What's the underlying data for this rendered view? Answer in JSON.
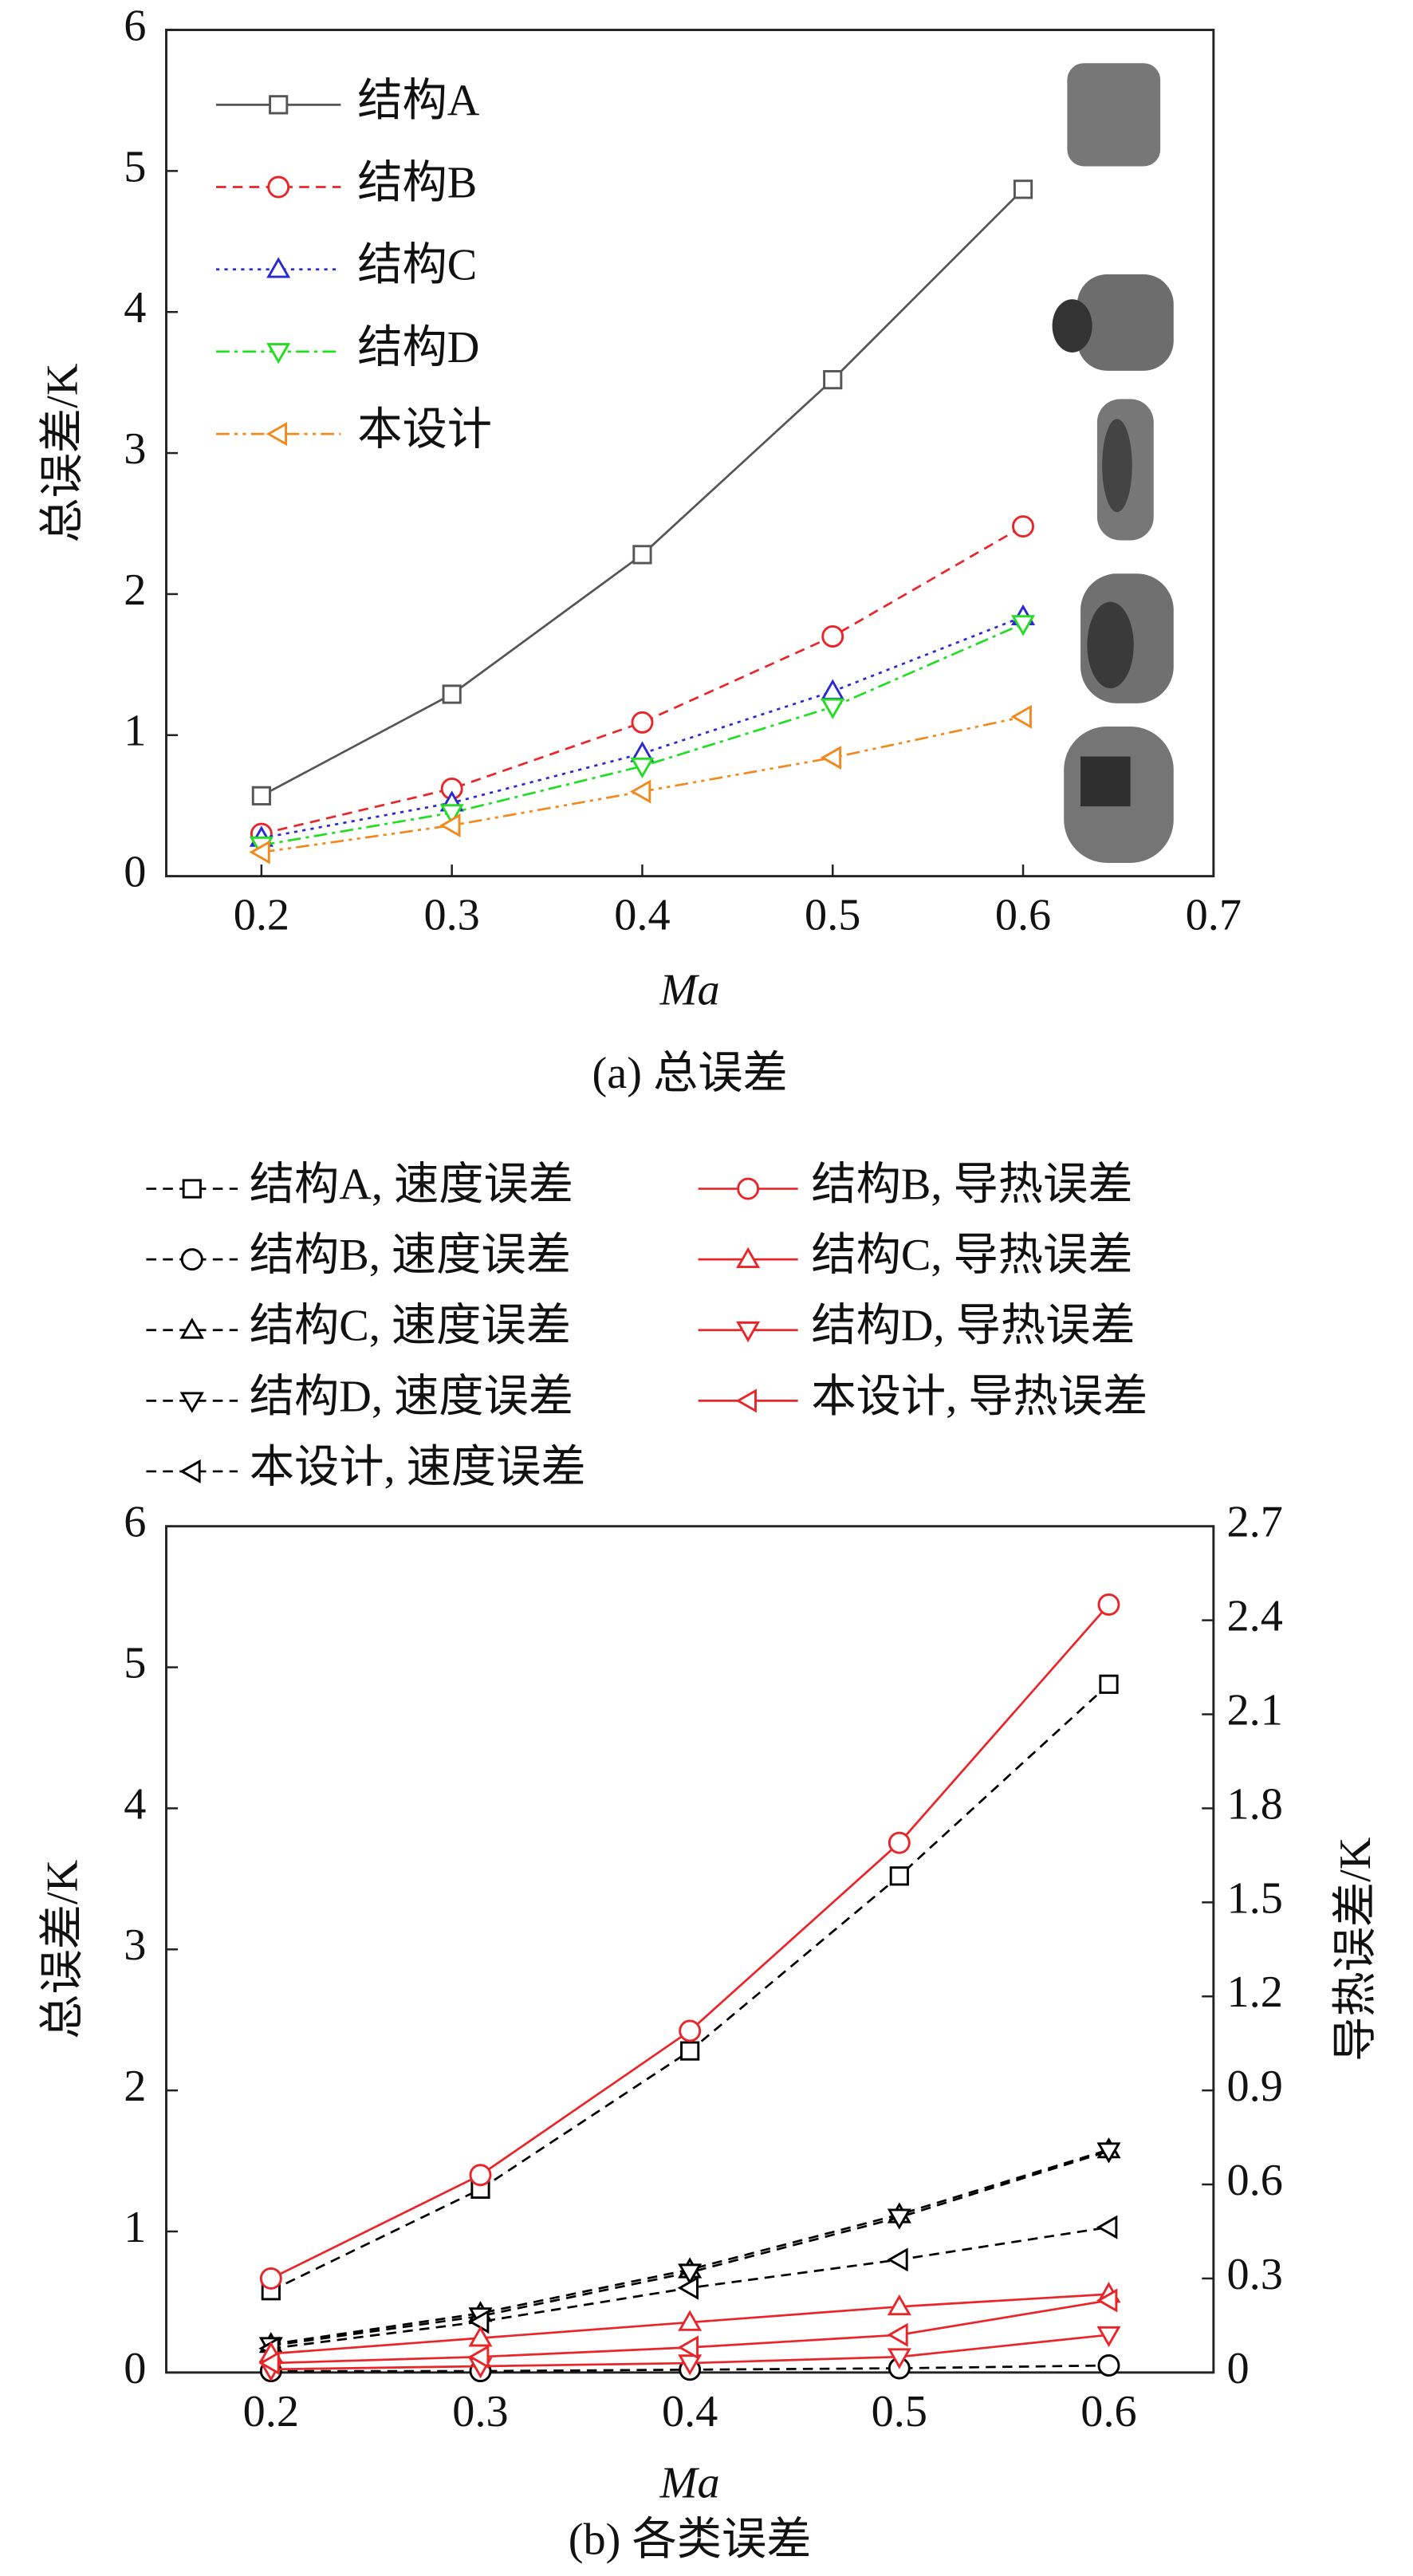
{
  "chart_data": [
    {
      "type": "line",
      "caption": "(a) 总误差",
      "xlabel": "Ma",
      "ylabel": "总误差/K",
      "x": [
        0.2,
        0.3,
        0.4,
        0.5,
        0.6
      ],
      "xlim": [
        0.15,
        0.7
      ],
      "xticks": [
        0.2,
        0.3,
        0.4,
        0.5,
        0.6,
        0.7
      ],
      "ylim": [
        0,
        6
      ],
      "yticks": [
        0,
        1,
        2,
        3,
        4,
        5,
        6
      ],
      "series": [
        {
          "name": "结构A",
          "color": "#555555",
          "marker": "square",
          "dash": "solid",
          "values": [
            0.57,
            1.29,
            2.28,
            3.52,
            4.87
          ]
        },
        {
          "name": "结构B",
          "color": "#e8262a",
          "marker": "circle",
          "dash": "dashed",
          "values": [
            0.3,
            0.62,
            1.09,
            1.7,
            2.48
          ]
        },
        {
          "name": "结构C",
          "color": "#2a2ad0",
          "marker": "triangle-up",
          "dash": "dotted",
          "values": [
            0.27,
            0.52,
            0.87,
            1.31,
            1.84
          ]
        },
        {
          "name": "结构D",
          "color": "#22dd22",
          "marker": "triangle-down",
          "dash": "dashdot",
          "values": [
            0.22,
            0.45,
            0.78,
            1.2,
            1.79
          ]
        },
        {
          "name": "本设计",
          "color": "#f08a1e",
          "marker": "triangle-left",
          "dash": "dashdotdot",
          "values": [
            0.17,
            0.36,
            0.6,
            0.84,
            1.13
          ]
        }
      ]
    },
    {
      "type": "line",
      "caption": "(b) 各类误差",
      "xlabel": "Ma",
      "ylabel": "总误差/K",
      "y2label": "导热误差/K",
      "x": [
        0.2,
        0.3,
        0.4,
        0.5,
        0.6
      ],
      "xlim": [
        0.15,
        0.65
      ],
      "xticks": [
        0.2,
        0.3,
        0.4,
        0.5,
        0.6
      ],
      "ylim": [
        0,
        6
      ],
      "yticks": [
        0,
        1,
        2,
        3,
        4,
        5,
        6
      ],
      "y2lim": [
        0,
        2.7
      ],
      "y2ticks": [
        0,
        0.3,
        0.6,
        0.9,
        1.2,
        1.5,
        1.8,
        2.1,
        2.4,
        2.7
      ],
      "series": [
        {
          "name": "结构A, 速度误差",
          "color": "#000000",
          "marker": "square",
          "dash": "dashed",
          "values": [
            0.58,
            1.3,
            2.28,
            3.52,
            4.88
          ]
        },
        {
          "name": "结构B, 速度误差",
          "color": "#000000",
          "marker": "circle",
          "dash": "dashed",
          "values": [
            0.01,
            0.01,
            0.02,
            0.03,
            0.05
          ]
        },
        {
          "name": "结构C, 速度误差",
          "color": "#000000",
          "marker": "triangle-up",
          "dash": "dashed",
          "values": [
            0.2,
            0.42,
            0.73,
            1.12,
            1.58
          ]
        },
        {
          "name": "结构D, 速度误差",
          "color": "#000000",
          "marker": "triangle-down",
          "dash": "dashed",
          "values": [
            0.19,
            0.4,
            0.71,
            1.1,
            1.57
          ]
        },
        {
          "name": "本设计, 速度误差",
          "color": "#000000",
          "marker": "triangle-left",
          "dash": "dashed",
          "values": [
            0.17,
            0.36,
            0.6,
            0.8,
            1.03
          ]
        },
        {
          "name": "结构B, 导热误差",
          "color": "#e8262a",
          "marker": "circle",
          "dash": "solid",
          "axis": "y2",
          "values": [
            0.3,
            0.63,
            1.09,
            1.69,
            2.45
          ]
        },
        {
          "name": "结构C, 导热误差",
          "color": "#e8262a",
          "marker": "triangle-up",
          "dash": "solid",
          "axis": "y2",
          "values": [
            0.06,
            0.11,
            0.16,
            0.21,
            0.25
          ]
        },
        {
          "name": "结构D, 导热误差",
          "color": "#e8262a",
          "marker": "triangle-down",
          "dash": "solid",
          "axis": "y2",
          "values": [
            0.01,
            0.02,
            0.03,
            0.05,
            0.12
          ]
        },
        {
          "name": "本设计, 导热误差",
          "color": "#e8262a",
          "marker": "triangle-left",
          "dash": "solid",
          "axis": "y2",
          "values": [
            0.03,
            0.05,
            0.08,
            0.12,
            0.23
          ]
        }
      ]
    }
  ]
}
